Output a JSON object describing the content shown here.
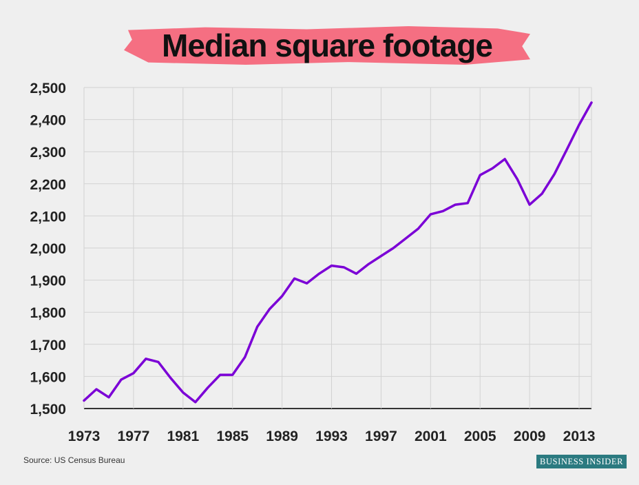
{
  "title": "Median square footage",
  "source": "Source: US Census Bureau",
  "logo": "BUSINESS INSIDER",
  "colors": {
    "line": "#7b00d6",
    "highlight": "#f56f82",
    "logo_bg": "#2b7a80"
  },
  "chart_data": {
    "type": "line",
    "title": "Median square footage",
    "xlabel": "",
    "ylabel": "",
    "xlim": [
      1973,
      2014
    ],
    "ylim": [
      1500,
      2500
    ],
    "yticks": [
      1500,
      1600,
      1700,
      1800,
      1900,
      2000,
      2100,
      2200,
      2300,
      2400,
      2500
    ],
    "ytick_labels": [
      "1,500",
      "1,600",
      "1,700",
      "1,800",
      "1,900",
      "2,000",
      "2,100",
      "2,200",
      "2,300",
      "2,400",
      "2,500"
    ],
    "xticks": [
      1973,
      1977,
      1981,
      1985,
      1989,
      1993,
      1997,
      2001,
      2005,
      2009,
      2013
    ],
    "xtick_labels": [
      "1973",
      "1977",
      "1981",
      "1985",
      "1989",
      "1993",
      "1997",
      "2001",
      "2005",
      "2009",
      "2013"
    ],
    "grid": true,
    "series": [
      {
        "x": [
          1973,
          1974,
          1975,
          1976,
          1977,
          1978,
          1979,
          1980,
          1981,
          1982,
          1983,
          1984,
          1985,
          1986,
          1987,
          1988,
          1989,
          1990,
          1991,
          1992,
          1993,
          1994,
          1995,
          1996,
          1997,
          1998,
          1999,
          2000,
          2001,
          2002,
          2003,
          2004,
          2005,
          2006,
          2007,
          2008,
          2009,
          2010,
          2011,
          2012,
          2013,
          2014
        ],
        "values": [
          1525,
          1560,
          1535,
          1590,
          1610,
          1655,
          1645,
          1595,
          1550,
          1520,
          1565,
          1605,
          1605,
          1660,
          1755,
          1810,
          1850,
          1905,
          1890,
          1920,
          1945,
          1940,
          1920,
          1950,
          1975,
          2000,
          2030,
          2060,
          2105,
          2115,
          2135,
          2140,
          2227,
          2248,
          2277,
          2215,
          2135,
          2169,
          2230,
          2306,
          2384,
          2453
        ]
      }
    ]
  }
}
